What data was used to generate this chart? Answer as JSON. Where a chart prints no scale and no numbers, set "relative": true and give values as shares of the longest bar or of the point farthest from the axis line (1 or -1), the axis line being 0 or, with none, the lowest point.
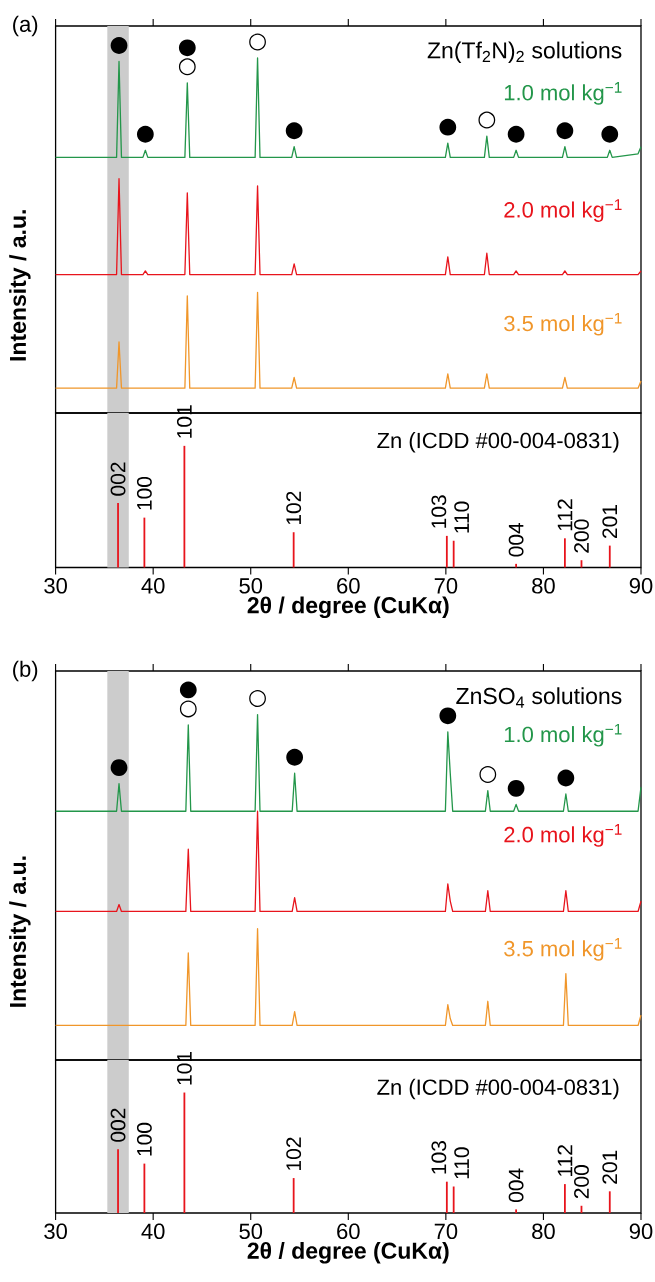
{
  "chart_data": [
    {
      "type": "line",
      "relative": true,
      "legend_title": "Zn(Tf$_{2}$N)$_{2}$ solutions",
      "ylabel": "Intensity / a.u.",
      "xlim": [
        30,
        90
      ],
      "xticks": [
        30,
        40,
        50,
        60,
        70,
        80,
        90
      ],
      "tick_labels": false,
      "bands": [
        {
          "axis": "x",
          "from": 35.3,
          "to": 37.5,
          "color": "#cccccc"
        }
      ],
      "x": [
        30,
        36.25,
        36.5,
        36.75,
        38.95,
        39.2,
        39.45,
        43.25,
        43.5,
        43.75,
        50.45,
        50.7,
        50.95,
        54.2,
        54.45,
        54.7,
        69.95,
        70.2,
        70.45,
        73.95,
        74.2,
        74.45,
        76.95,
        77.2,
        77.45,
        81.95,
        82.2,
        82.45,
        86.55,
        86.8,
        87.05,
        89.7,
        90
      ],
      "series": [
        {
          "name": "1.0 mol kg$^{−1}$",
          "color": "#23964a",
          "values": [
            0.72,
            0.72,
            0.99,
            0.72,
            0.72,
            0.74,
            0.72,
            0.72,
            0.93,
            0.72,
            0.72,
            1.0,
            0.72,
            0.72,
            0.75,
            0.72,
            0.72,
            0.76,
            0.72,
            0.72,
            0.78,
            0.72,
            0.72,
            0.74,
            0.72,
            0.72,
            0.75,
            0.72,
            0.72,
            0.74,
            0.72,
            0.73,
            0.75
          ]
        },
        {
          "name": "2.0 mol kg$^{−1}$",
          "color": "#e8141c",
          "values": [
            0.39,
            0.39,
            0.66,
            0.39,
            0.39,
            0.4,
            0.39,
            0.39,
            0.62,
            0.39,
            0.39,
            0.64,
            0.39,
            0.39,
            0.42,
            0.39,
            0.39,
            0.44,
            0.39,
            0.39,
            0.45,
            0.39,
            0.39,
            0.4,
            0.39,
            0.39,
            0.4,
            0.39,
            0.39,
            0.39,
            0.39,
            0.39,
            0.4
          ]
        },
        {
          "name": "3.5 mol kg$^{−1}$",
          "color": "#f0962a",
          "values": [
            0.07,
            0.07,
            0.2,
            0.07,
            0.07,
            0.07,
            0.07,
            0.07,
            0.33,
            0.07,
            0.07,
            0.34,
            0.07,
            0.07,
            0.1,
            0.07,
            0.07,
            0.11,
            0.07,
            0.07,
            0.11,
            0.07,
            0.07,
            0.07,
            0.07,
            0.07,
            0.1,
            0.07,
            0.07,
            0.07,
            0.07,
            0.07,
            0.09
          ]
        }
      ],
      "annotations": [
        "(a)",
        {
          "text": "●",
          "x": 36.5,
          "y": 0.99
        },
        {
          "text": "●",
          "x": 39.2,
          "y": 0.74
        },
        {
          "text": "○",
          "x": 43.5,
          "y": 0.93
        },
        {
          "text": "●",
          "x": 43.5,
          "y": 0.93
        },
        {
          "text": "○",
          "x": 50.7,
          "y": 1.0
        },
        {
          "text": "●",
          "x": 54.45,
          "y": 0.75
        },
        {
          "text": "●",
          "x": 70.2,
          "y": 0.76
        },
        {
          "text": "○",
          "x": 74.2,
          "y": 0.78
        },
        {
          "text": "●",
          "x": 77.2,
          "y": 0.74
        },
        {
          "text": "●",
          "x": 82.2,
          "y": 0.75
        },
        {
          "text": "●",
          "x": 86.8,
          "y": 0.74
        }
      ]
    },
    {
      "type": "bar",
      "relative": true,
      "title": "Zn (ICDD #00-004-0831)",
      "xlabel": "2θ / degree (CuKα)",
      "xlim": [
        30,
        90
      ],
      "xticks": [
        30,
        40,
        50,
        60,
        70,
        80,
        90
      ],
      "bands": [
        {
          "axis": "x",
          "from": 35.3,
          "to": 37.5,
          "color": "#cccccc"
        }
      ],
      "x": [
        36.4,
        39.1,
        43.2,
        54.4,
        70.1,
        70.8,
        77.2,
        82.2,
        83.9,
        86.8
      ],
      "color": "#e8141c",
      "values": [
        0.53,
        0.41,
        1.0,
        0.29,
        0.26,
        0.22,
        0.03,
        0.24,
        0.06,
        0.18
      ],
      "annotations": [
        {
          "text": "002",
          "x": 36.4,
          "y": 0.53
        },
        {
          "text": "100",
          "x": 39.1,
          "y": 0.41
        },
        {
          "text": "101",
          "x": 43.2,
          "y": 1.0
        },
        {
          "text": "102",
          "x": 54.4,
          "y": 0.29
        },
        {
          "text": "103",
          "x": 70.1,
          "y": 0.26
        },
        {
          "text": "110",
          "x": 70.8,
          "y": 0.22
        },
        {
          "text": "004",
          "x": 77.2,
          "y": 0.03
        },
        {
          "text": "112",
          "x": 82.2,
          "y": 0.24
        },
        {
          "text": "200",
          "x": 83.9,
          "y": 0.06
        },
        {
          "text": "201",
          "x": 86.8,
          "y": 0.18
        }
      ]
    },
    {
      "type": "line",
      "relative": true,
      "legend_title": "ZnSO$_{4}$ solutions",
      "ylabel": "Intensity / a.u.",
      "xlim": [
        30,
        90
      ],
      "xticks": [
        30,
        40,
        50,
        60,
        70,
        80,
        90
      ],
      "tick_labels": false,
      "bands": [
        {
          "axis": "x",
          "from": 35.3,
          "to": 37.5,
          "color": "#cccccc"
        }
      ],
      "x": [
        30,
        36.25,
        36.5,
        36.75,
        43.35,
        43.6,
        43.85,
        50.45,
        50.7,
        50.95,
        54.25,
        54.5,
        54.75,
        69.95,
        70.2,
        70.45,
        70.7,
        74.05,
        74.3,
        74.55,
        76.95,
        77.2,
        77.45,
        82.05,
        82.3,
        82.55,
        89.7,
        90
      ],
      "series": [
        {
          "name": "1.0 mol kg$^{−1}$",
          "color": "#23964a",
          "values": [
            0.72,
            0.72,
            0.8,
            0.72,
            0.72,
            0.97,
            0.72,
            0.72,
            1.0,
            0.72,
            0.72,
            0.83,
            0.72,
            0.72,
            0.95,
            0.83,
            0.72,
            0.72,
            0.78,
            0.72,
            0.72,
            0.74,
            0.72,
            0.72,
            0.77,
            0.72,
            0.72,
            0.79
          ]
        },
        {
          "name": "2.0 mol kg$^{−1}$",
          "color": "#e8141c",
          "values": [
            0.43,
            0.43,
            0.45,
            0.43,
            0.43,
            0.61,
            0.43,
            0.43,
            0.72,
            0.43,
            0.43,
            0.47,
            0.43,
            0.43,
            0.51,
            0.46,
            0.43,
            0.43,
            0.49,
            0.43,
            0.43,
            0.43,
            0.43,
            0.43,
            0.49,
            0.43,
            0.43,
            0.46
          ]
        },
        {
          "name": "3.5 mol kg$^{−1}$",
          "color": "#f0962a",
          "values": [
            0.1,
            0.1,
            0.1,
            0.1,
            0.1,
            0.31,
            0.1,
            0.1,
            0.38,
            0.1,
            0.1,
            0.14,
            0.1,
            0.1,
            0.16,
            0.12,
            0.1,
            0.1,
            0.17,
            0.1,
            0.1,
            0.1,
            0.1,
            0.1,
            0.25,
            0.1,
            0.1,
            0.13
          ]
        }
      ],
      "annotations": [
        "(b)",
        {
          "text": "●",
          "x": 36.5,
          "y": 0.8
        },
        {
          "text": "○",
          "x": 43.6,
          "y": 0.97
        },
        {
          "text": "●",
          "x": 43.6,
          "y": 0.97
        },
        {
          "text": "○",
          "x": 50.7,
          "y": 1.0
        },
        {
          "text": "●",
          "x": 54.5,
          "y": 0.83
        },
        {
          "text": "●",
          "x": 70.2,
          "y": 0.95
        },
        {
          "text": "○",
          "x": 74.3,
          "y": 0.78
        },
        {
          "text": "●",
          "x": 77.2,
          "y": 0.74
        },
        {
          "text": "●",
          "x": 82.3,
          "y": 0.77
        }
      ]
    },
    {
      "type": "bar",
      "relative": true,
      "title": "Zn (ICDD #00-004-0831)",
      "xlabel": "2θ / degree (CuKα)",
      "xlim": [
        30,
        90
      ],
      "xticks": [
        30,
        40,
        50,
        60,
        70,
        80,
        90
      ],
      "bands": [
        {
          "axis": "x",
          "from": 35.3,
          "to": 37.5,
          "color": "#cccccc"
        }
      ],
      "x": [
        36.4,
        39.1,
        43.2,
        54.4,
        70.1,
        70.8,
        77.2,
        82.2,
        83.9,
        86.8
      ],
      "color": "#e8141c",
      "values": [
        0.53,
        0.41,
        1.0,
        0.29,
        0.26,
        0.22,
        0.03,
        0.24,
        0.06,
        0.18
      ],
      "annotations": [
        {
          "text": "002",
          "x": 36.4,
          "y": 0.53
        },
        {
          "text": "100",
          "x": 39.1,
          "y": 0.41
        },
        {
          "text": "101",
          "x": 43.2,
          "y": 1.0
        },
        {
          "text": "102",
          "x": 54.4,
          "y": 0.29
        },
        {
          "text": "103",
          "x": 70.1,
          "y": 0.26
        },
        {
          "text": "110",
          "x": 70.8,
          "y": 0.22
        },
        {
          "text": "004",
          "x": 77.2,
          "y": 0.03
        },
        {
          "text": "112",
          "x": 82.2,
          "y": 0.24
        },
        {
          "text": "200",
          "x": 83.9,
          "y": 0.06
        },
        {
          "text": "201",
          "x": 86.8,
          "y": 0.18
        }
      ]
    }
  ]
}
